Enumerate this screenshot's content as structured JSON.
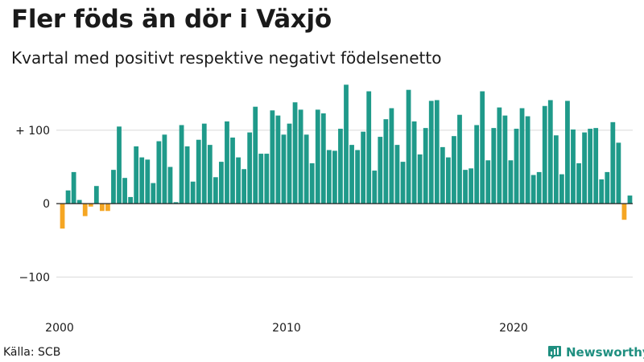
{
  "title": "Fler föds än dör i Växjö",
  "subtitle": "Kvartal med positivt respektive negativt födelsenetto",
  "source": "Källa: SCB",
  "brand": {
    "name": "Newsworthy",
    "icon": "bar-chart-logo-icon"
  },
  "colors": {
    "positive": "#1f9a8a",
    "negative": "#f5a623",
    "grid": "#d9d9d9",
    "axis": "#222222"
  },
  "chart_data": {
    "type": "bar",
    "x_start": 2000,
    "periods_per_year": 4,
    "ylim": [
      -150,
      170
    ],
    "yticks": [
      {
        "value": 100,
        "label": "+ 100"
      },
      {
        "value": 0,
        "label": "0"
      },
      {
        "value": -100,
        "label": "−100"
      }
    ],
    "xticks": [
      {
        "value": 2000,
        "label": "2000"
      },
      {
        "value": 2010,
        "label": "2010"
      },
      {
        "value": 2020,
        "label": "2020"
      }
    ],
    "grid": true,
    "values": [
      -34,
      18,
      43,
      5,
      -17,
      -4,
      24,
      -10,
      -10,
      46,
      105,
      35,
      9,
      78,
      63,
      60,
      28,
      85,
      94,
      50,
      2,
      107,
      78,
      30,
      87,
      109,
      80,
      36,
      57,
      112,
      90,
      63,
      47,
      97,
      132,
      68,
      68,
      127,
      120,
      94,
      109,
      138,
      128,
      94,
      55,
      128,
      123,
      73,
      72,
      102,
      162,
      80,
      73,
      98,
      153,
      45,
      91,
      115,
      130,
      80,
      57,
      155,
      112,
      67,
      103,
      140,
      141,
      77,
      63,
      92,
      121,
      46,
      48,
      107,
      153,
      59,
      103,
      131,
      120,
      59,
      102,
      130,
      119,
      39,
      43,
      133,
      141,
      93,
      40,
      140,
      101,
      55,
      97,
      102,
      103,
      33,
      43,
      111,
      83,
      -22,
      11
    ]
  }
}
